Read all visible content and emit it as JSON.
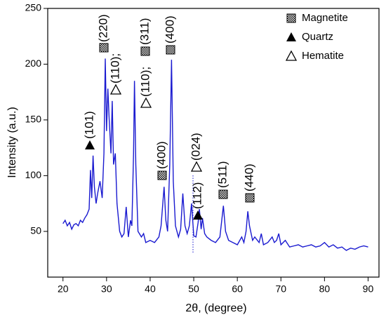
{
  "chart_data": {
    "type": "line",
    "x_label": "2θ, (degree)",
    "y_label": "Intensity (a.u.)",
    "xlim": [
      16.5,
      92.5
    ],
    "ylim": [
      9,
      250
    ],
    "xticks": [
      20,
      30,
      40,
      50,
      60,
      70,
      80,
      90
    ],
    "yticks": [
      50,
      100,
      150,
      200,
      250
    ],
    "color": "#1a1ad0",
    "x": [
      20,
      20.5,
      21,
      21.5,
      22,
      22.5,
      23,
      23.5,
      24,
      24.5,
      25,
      25.5,
      26,
      26.3,
      26.6,
      26.9,
      27.2,
      27.6,
      28,
      28.5,
      29,
      29.4,
      29.7,
      30,
      30.3,
      30.6,
      31,
      31.3,
      31.6,
      32,
      32.4,
      33,
      33.5,
      34,
      34.5,
      35,
      35.5,
      35.8,
      36.2,
      36.4,
      36.7,
      37.2,
      38,
      38.5,
      39,
      40,
      41,
      42,
      42.5,
      43.2,
      43.6,
      44,
      44.5,
      44.9,
      45.3,
      45.8,
      46.5,
      47,
      47.5,
      48,
      48.5,
      49,
      49.5,
      50,
      50.5,
      51,
      51.3,
      51.7,
      52,
      52.5,
      53,
      54,
      55,
      56,
      56.8,
      57.3,
      58,
      59,
      60,
      61,
      61.5,
      62,
      62.4,
      62.8,
      63.5,
      64,
      65,
      65.5,
      66,
      67,
      68,
      68.5,
      69,
      69.5,
      70,
      71,
      72,
      73,
      74,
      75,
      76,
      77,
      78,
      79,
      80,
      81,
      82,
      83,
      84,
      85,
      86,
      87,
      88,
      89,
      90
    ],
    "values": [
      57,
      60,
      55,
      58,
      52,
      56,
      57,
      55,
      60,
      58,
      62,
      65,
      70,
      105,
      80,
      118,
      90,
      75,
      85,
      95,
      80,
      120,
      205,
      140,
      178,
      150,
      120,
      167,
      110,
      120,
      75,
      50,
      45,
      48,
      72,
      45,
      60,
      55,
      120,
      185,
      110,
      50,
      45,
      48,
      40,
      42,
      40,
      45,
      55,
      90,
      60,
      50,
      110,
      204,
      95,
      55,
      45,
      52,
      84,
      55,
      48,
      55,
      75,
      46,
      45,
      58,
      70,
      52,
      62,
      48,
      45,
      42,
      40,
      45,
      73,
      50,
      42,
      40,
      38,
      45,
      40,
      50,
      68,
      55,
      42,
      45,
      40,
      48,
      38,
      40,
      45,
      40,
      42,
      48,
      38,
      42,
      36,
      37,
      38,
      36,
      37,
      38,
      36,
      37,
      40,
      36,
      38,
      35,
      36,
      33,
      35,
      34,
      36,
      37,
      36
    ],
    "annotations": [
      "(101)",
      "(220)",
      "(110);",
      "(110);",
      "(311)",
      "(400)",
      "(400)",
      "(112)",
      "(024)",
      "(511)",
      "(440)"
    ],
    "legend": [
      "Magnetite",
      "Quartz",
      "Hematite"
    ]
  }
}
